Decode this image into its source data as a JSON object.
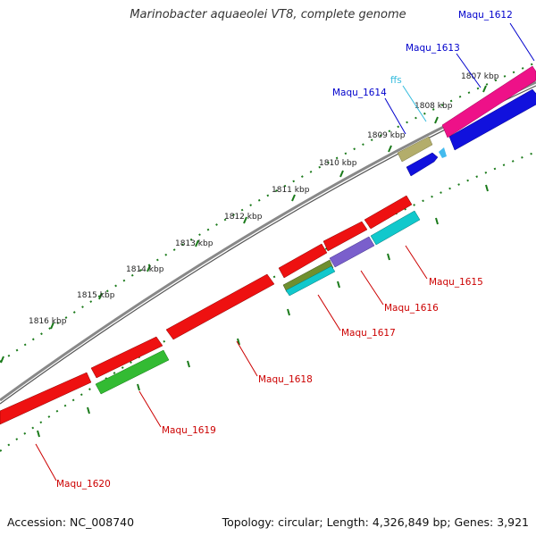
{
  "title": "Marinobacter aquaeolei VT8, complete genome",
  "footer": {
    "accession": "Accession: NC_008740",
    "summary": "Topology: circular; Length: 4,326,849 bp; Genes: 3,921"
  },
  "ticks": [
    "1807 kbp",
    "1808 kbp",
    "1809 kbp",
    "1810 kbp",
    "1811 kbp",
    "1812 kbp",
    "1813 kbp",
    "1814 kbp",
    "1815 kbp",
    "1816 kbp"
  ],
  "genes": [
    {
      "name": "Maqu_1612",
      "color": "#0000cc"
    },
    {
      "name": "Maqu_1613",
      "color": "#0000cc"
    },
    {
      "name": "Maqu_1614",
      "color": "#0000cc"
    },
    {
      "name": "ffs",
      "color": "#33bbdd"
    },
    {
      "name": "Maqu_1615",
      "color": "#cc0000"
    },
    {
      "name": "Maqu_1616",
      "color": "#cc0000"
    },
    {
      "name": "Maqu_1617",
      "color": "#cc0000"
    },
    {
      "name": "Maqu_1618",
      "color": "#cc0000"
    },
    {
      "name": "Maqu_1619",
      "color": "#cc0000"
    },
    {
      "name": "Maqu_1620",
      "color": "#cc0000"
    }
  ],
  "colors": {
    "backbone": "#888888",
    "tick": "#1a7a1a",
    "red": "#ee1111",
    "magenta": "#ee1188",
    "blue": "#1111dd",
    "khaki": "#b3ad6b",
    "green": "#33bb33",
    "cyan": "#11c8cc",
    "purple": "#7a5fcc",
    "olive": "#6f8f2f",
    "lightblue": "#44bbee"
  }
}
